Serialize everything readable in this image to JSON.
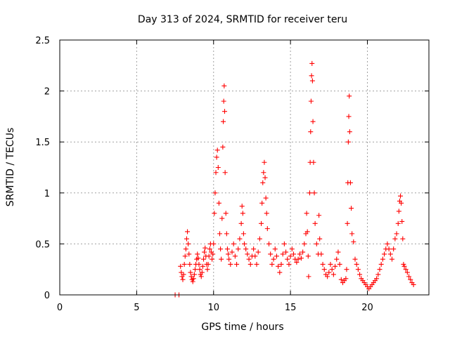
{
  "chart_data": {
    "type": "scatter",
    "title": "Day 313 of 2024, SRMTID for receiver teru",
    "xlabel": "GPS time / hours",
    "ylabel": "SRMTID / TECUs",
    "xlim": [
      0,
      24
    ],
    "ylim": [
      0,
      2.5
    ],
    "x_ticks": [
      0,
      5,
      10,
      15,
      20
    ],
    "y_ticks": [
      0,
      0.5,
      1,
      1.5,
      2,
      2.5
    ],
    "x_tick_labels": [
      "0",
      "5",
      "10",
      "15",
      "20"
    ],
    "y_tick_labels": [
      "0",
      "0.5",
      "1",
      "1.5",
      "2",
      "2.5"
    ],
    "grid": true,
    "marker": "+",
    "color": "#ff0000",
    "series": [
      {
        "name": "SRMTID",
        "points": [
          [
            7.5,
            0.0
          ],
          [
            7.75,
            0.0
          ],
          [
            7.85,
            0.28
          ],
          [
            7.9,
            0.22
          ],
          [
            7.95,
            0.18
          ],
          [
            8.0,
            0.15
          ],
          [
            8.05,
            0.2
          ],
          [
            8.1,
            0.3
          ],
          [
            8.15,
            0.38
          ],
          [
            8.2,
            0.45
          ],
          [
            8.25,
            0.55
          ],
          [
            8.3,
            0.62
          ],
          [
            8.35,
            0.5
          ],
          [
            8.4,
            0.4
          ],
          [
            8.45,
            0.3
          ],
          [
            8.5,
            0.22
          ],
          [
            8.55,
            0.18
          ],
          [
            8.6,
            0.15
          ],
          [
            8.65,
            0.13
          ],
          [
            8.7,
            0.16
          ],
          [
            8.75,
            0.2
          ],
          [
            8.8,
            0.25
          ],
          [
            8.85,
            0.3
          ],
          [
            8.9,
            0.35
          ],
          [
            8.95,
            0.4
          ],
          [
            9.0,
            0.36
          ],
          [
            9.05,
            0.3
          ],
          [
            9.1,
            0.25
          ],
          [
            9.15,
            0.2
          ],
          [
            9.2,
            0.18
          ],
          [
            9.25,
            0.22
          ],
          [
            9.3,
            0.28
          ],
          [
            9.35,
            0.35
          ],
          [
            9.4,
            0.42
          ],
          [
            9.45,
            0.46
          ],
          [
            9.5,
            0.38
          ],
          [
            9.55,
            0.3
          ],
          [
            9.6,
            0.25
          ],
          [
            9.65,
            0.3
          ],
          [
            9.7,
            0.38
          ],
          [
            9.75,
            0.45
          ],
          [
            9.8,
            0.5
          ],
          [
            9.85,
            0.42
          ],
          [
            9.9,
            0.35
          ],
          [
            9.95,
            0.4
          ],
          [
            10.0,
            0.5
          ],
          [
            10.05,
            0.8
          ],
          [
            10.1,
            1.0
          ],
          [
            10.15,
            1.2
          ],
          [
            10.2,
            1.35
          ],
          [
            10.25,
            1.42
          ],
          [
            10.3,
            1.25
          ],
          [
            10.35,
            0.9
          ],
          [
            10.4,
            0.6
          ],
          [
            10.45,
            0.45
          ],
          [
            10.5,
            0.35
          ],
          [
            10.55,
            0.75
          ],
          [
            10.6,
            1.45
          ],
          [
            10.63,
            1.7
          ],
          [
            10.66,
            1.9
          ],
          [
            10.69,
            2.05
          ],
          [
            10.72,
            1.8
          ],
          [
            10.75,
            1.2
          ],
          [
            10.8,
            0.8
          ],
          [
            10.85,
            0.6
          ],
          [
            10.9,
            0.45
          ],
          [
            10.95,
            0.4
          ],
          [
            11.0,
            0.35
          ],
          [
            11.1,
            0.3
          ],
          [
            11.2,
            0.42
          ],
          [
            11.3,
            0.5
          ],
          [
            11.4,
            0.38
          ],
          [
            11.5,
            0.3
          ],
          [
            11.6,
            0.45
          ],
          [
            11.7,
            0.55
          ],
          [
            11.8,
            0.7
          ],
          [
            11.85,
            0.87
          ],
          [
            11.9,
            0.8
          ],
          [
            11.95,
            0.6
          ],
          [
            12.0,
            0.5
          ],
          [
            12.1,
            0.45
          ],
          [
            12.2,
            0.4
          ],
          [
            12.3,
            0.35
          ],
          [
            12.4,
            0.3
          ],
          [
            12.5,
            0.38
          ],
          [
            12.6,
            0.45
          ],
          [
            12.7,
            0.38
          ],
          [
            12.8,
            0.3
          ],
          [
            12.9,
            0.42
          ],
          [
            13.0,
            0.55
          ],
          [
            13.1,
            0.7
          ],
          [
            13.15,
            0.9
          ],
          [
            13.2,
            1.1
          ],
          [
            13.25,
            1.2
          ],
          [
            13.3,
            1.3
          ],
          [
            13.35,
            1.15
          ],
          [
            13.4,
            0.95
          ],
          [
            13.45,
            0.8
          ],
          [
            13.5,
            0.65
          ],
          [
            13.6,
            0.5
          ],
          [
            13.7,
            0.4
          ],
          [
            13.8,
            0.3
          ],
          [
            13.9,
            0.35
          ],
          [
            14.0,
            0.45
          ],
          [
            14.1,
            0.38
          ],
          [
            14.2,
            0.28
          ],
          [
            14.3,
            0.22
          ],
          [
            14.4,
            0.3
          ],
          [
            14.5,
            0.4
          ],
          [
            14.6,
            0.5
          ],
          [
            14.7,
            0.42
          ],
          [
            14.8,
            0.35
          ],
          [
            14.9,
            0.3
          ],
          [
            15.0,
            0.38
          ],
          [
            15.1,
            0.45
          ],
          [
            15.2,
            0.4
          ],
          [
            15.3,
            0.35
          ],
          [
            15.4,
            0.32
          ],
          [
            15.5,
            0.35
          ],
          [
            15.6,
            0.4
          ],
          [
            15.7,
            0.36
          ],
          [
            15.8,
            0.42
          ],
          [
            15.9,
            0.5
          ],
          [
            16.0,
            0.6
          ],
          [
            16.05,
            0.8
          ],
          [
            16.1,
            0.62
          ],
          [
            16.15,
            0.38
          ],
          [
            16.18,
            0.18
          ],
          [
            16.25,
            1.0
          ],
          [
            16.28,
            1.3
          ],
          [
            16.31,
            1.6
          ],
          [
            16.34,
            1.9
          ],
          [
            16.37,
            2.15
          ],
          [
            16.4,
            2.27
          ],
          [
            16.43,
            2.1
          ],
          [
            16.46,
            1.7
          ],
          [
            16.5,
            1.3
          ],
          [
            16.55,
            1.0
          ],
          [
            16.6,
            0.7
          ],
          [
            16.7,
            0.5
          ],
          [
            16.8,
            0.4
          ],
          [
            16.85,
            0.78
          ],
          [
            16.9,
            0.55
          ],
          [
            17.0,
            0.4
          ],
          [
            17.1,
            0.3
          ],
          [
            17.2,
            0.25
          ],
          [
            17.3,
            0.2
          ],
          [
            17.4,
            0.18
          ],
          [
            17.5,
            0.22
          ],
          [
            17.6,
            0.3
          ],
          [
            17.7,
            0.25
          ],
          [
            17.8,
            0.2
          ],
          [
            17.9,
            0.28
          ],
          [
            18.0,
            0.35
          ],
          [
            18.1,
            0.42
          ],
          [
            18.2,
            0.3
          ],
          [
            18.3,
            0.15
          ],
          [
            18.4,
            0.12
          ],
          [
            18.5,
            0.14
          ],
          [
            18.6,
            0.16
          ],
          [
            18.65,
            0.25
          ],
          [
            18.7,
            0.7
          ],
          [
            18.73,
            1.1
          ],
          [
            18.76,
            1.5
          ],
          [
            18.79,
            1.75
          ],
          [
            18.82,
            1.95
          ],
          [
            18.85,
            1.6
          ],
          [
            18.9,
            1.1
          ],
          [
            18.95,
            0.85
          ],
          [
            19.0,
            0.6
          ],
          [
            19.1,
            0.52
          ],
          [
            19.2,
            0.35
          ],
          [
            19.3,
            0.3
          ],
          [
            19.4,
            0.25
          ],
          [
            19.5,
            0.2
          ],
          [
            19.6,
            0.16
          ],
          [
            19.7,
            0.14
          ],
          [
            19.8,
            0.12
          ],
          [
            19.9,
            0.1
          ],
          [
            20.0,
            0.08
          ],
          [
            20.1,
            0.06
          ],
          [
            20.2,
            0.08
          ],
          [
            20.3,
            0.1
          ],
          [
            20.4,
            0.12
          ],
          [
            20.5,
            0.14
          ],
          [
            20.6,
            0.16
          ],
          [
            20.7,
            0.2
          ],
          [
            20.8,
            0.25
          ],
          [
            20.9,
            0.3
          ],
          [
            21.0,
            0.35
          ],
          [
            21.1,
            0.4
          ],
          [
            21.2,
            0.45
          ],
          [
            21.3,
            0.5
          ],
          [
            21.4,
            0.45
          ],
          [
            21.5,
            0.4
          ],
          [
            21.6,
            0.35
          ],
          [
            21.7,
            0.45
          ],
          [
            21.8,
            0.55
          ],
          [
            21.9,
            0.6
          ],
          [
            22.0,
            0.7
          ],
          [
            22.05,
            0.82
          ],
          [
            22.1,
            0.92
          ],
          [
            22.15,
            0.97
          ],
          [
            22.2,
            0.9
          ],
          [
            22.25,
            0.72
          ],
          [
            22.3,
            0.55
          ],
          [
            22.35,
            0.3
          ],
          [
            22.4,
            0.28
          ],
          [
            22.5,
            0.25
          ],
          [
            22.6,
            0.22
          ],
          [
            22.7,
            0.18
          ],
          [
            22.8,
            0.15
          ],
          [
            22.9,
            0.12
          ],
          [
            23.0,
            0.1
          ]
        ]
      }
    ]
  }
}
